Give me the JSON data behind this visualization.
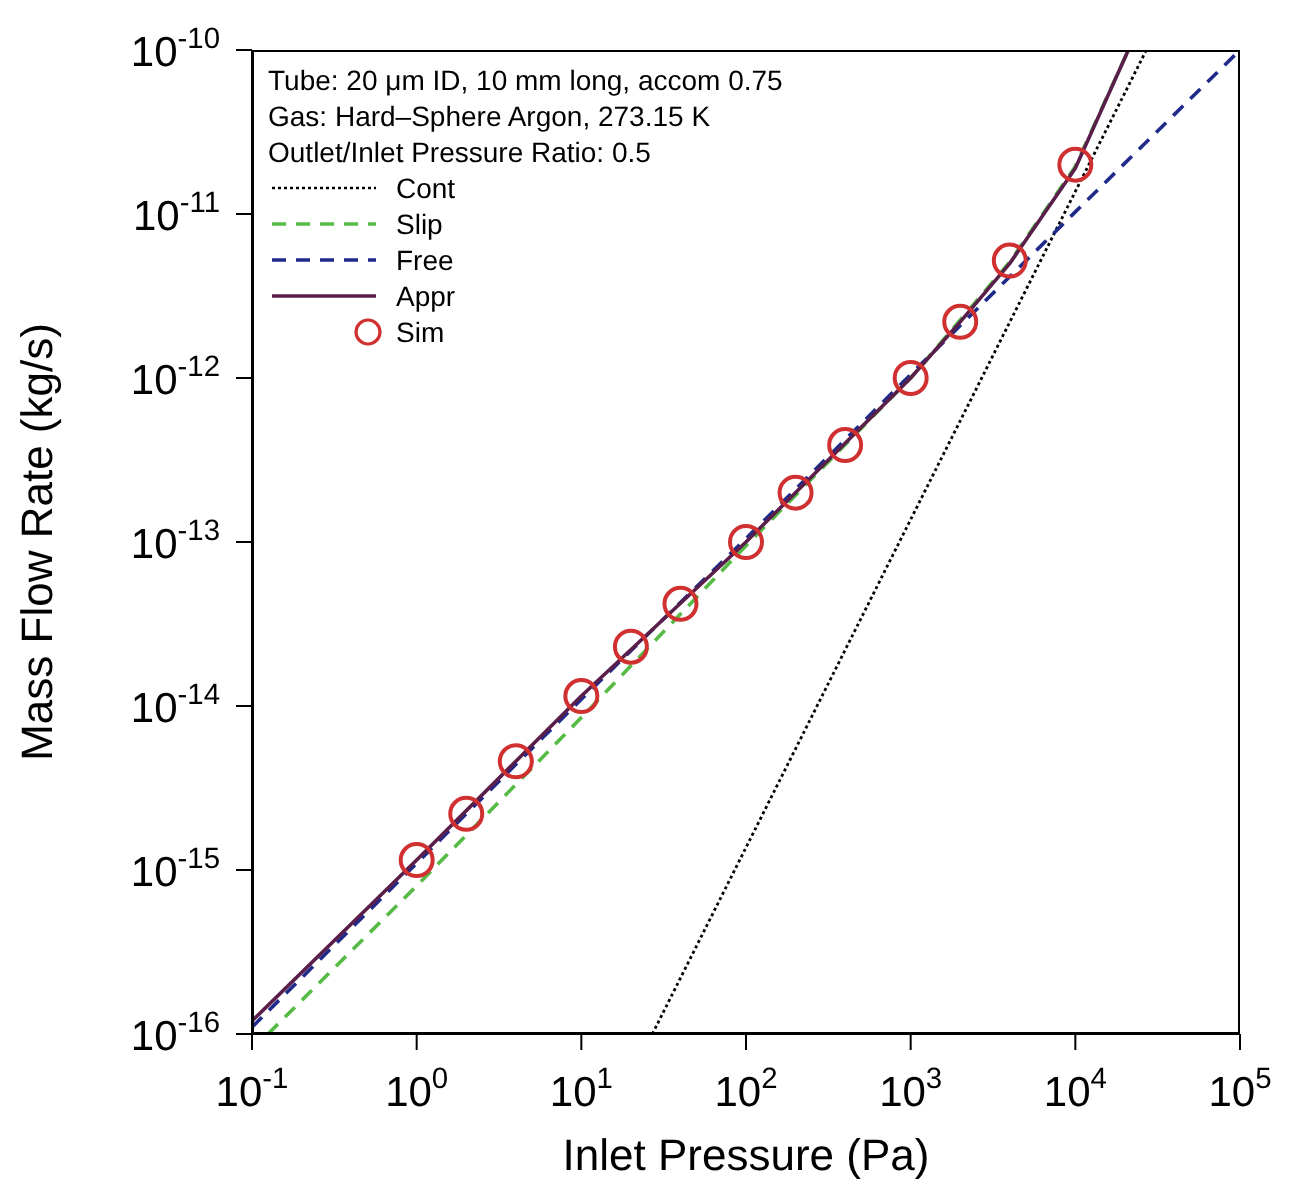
{
  "chart_data": {
    "type": "line",
    "xlabel": "Inlet Pressure (Pa)",
    "ylabel": "Mass Flow Rate (kg/s)",
    "annotations": [
      "Tube: 20 μm ID, 10 mm long, accom 0.75",
      "Gas: Hard–Sphere Argon, 273.15 K",
      "Outlet/Inlet Pressure Ratio: 0.5"
    ],
    "log": "xy",
    "legend": "top left",
    "grid": false,
    "xlim": [
      0.1,
      100000
    ],
    "ylim": [
      1e-16,
      1e-10
    ],
    "xticks": [
      {
        "value": 0.1,
        "label": "10$^{-1}$"
      },
      {
        "value": 1,
        "label": "10$^{0}$"
      },
      {
        "value": 10,
        "label": "10$^{1}$"
      },
      {
        "value": 100,
        "label": "10$^{2}$"
      },
      {
        "value": 1000,
        "label": "10$^{3}$"
      },
      {
        "value": 10000,
        "label": "10$^{4}$"
      },
      {
        "value": 100000,
        "label": "10$^{5}$"
      }
    ],
    "yticks": [
      {
        "value": 1e-16,
        "label": "10$^{-16}$"
      },
      {
        "value": 1e-15,
        "label": "10$^{-15}$"
      },
      {
        "value": 1e-14,
        "label": "10$^{-14}$"
      },
      {
        "value": 1e-13,
        "label": "10$^{-13}$"
      },
      {
        "value": 1e-12,
        "label": "10$^{-12}$"
      },
      {
        "value": 1e-11,
        "label": "10$^{-11}$"
      },
      {
        "value": 1e-10,
        "label": "10$^{-10}$"
      }
    ],
    "series": [
      {
        "name": "Cont",
        "color": "#000000",
        "line_style": "dotted",
        "x": [
          27,
          27000
        ],
        "values": [
          1e-16,
          1e-10
        ]
      },
      {
        "name": "Slip",
        "color": "#55bb44",
        "line_style": "dashed",
        "x": [
          0.125,
          1,
          10,
          100,
          1000,
          4000,
          10000,
          21000
        ],
        "values": [
          1e-16,
          8e-16,
          8.5e-15,
          9.5e-14,
          1e-12,
          5.1e-12,
          1.95e-11,
          1e-10
        ]
      },
      {
        "name": "Free",
        "color": "#1f2a8a",
        "line_style": "dashed",
        "x": [
          0.1,
          1,
          10,
          100,
          1000,
          10000,
          100000
        ],
        "values": [
          1.1e-16,
          1.1e-15,
          1.1e-14,
          1.05e-13,
          1.05e-12,
          1.03e-11,
          1e-10
        ]
      },
      {
        "name": "Appr",
        "color": "#5a1e4a",
        "line_style": "solid",
        "x": [
          0.1,
          1,
          10,
          100,
          1000,
          2000,
          4000,
          10000,
          21000
        ],
        "values": [
          1.2e-16,
          1.15e-15,
          1.15e-14,
          1e-13,
          1e-12,
          2.2e-12,
          5e-12,
          1.9e-11,
          1e-10
        ]
      },
      {
        "name": "Sim",
        "type": "scatter",
        "color": "#d03030",
        "marker": "circle",
        "x": [
          1,
          2,
          4,
          10,
          20,
          40,
          100,
          200,
          400,
          1000,
          2000,
          4000,
          10000
        ],
        "values": [
          1.15e-15,
          2.2e-15,
          4.6e-15,
          1.15e-14,
          2.3e-14,
          4.2e-14,
          1e-13,
          2e-13,
          3.9e-13,
          1e-12,
          2.2e-12,
          5.2e-12,
          2e-11
        ]
      }
    ]
  }
}
